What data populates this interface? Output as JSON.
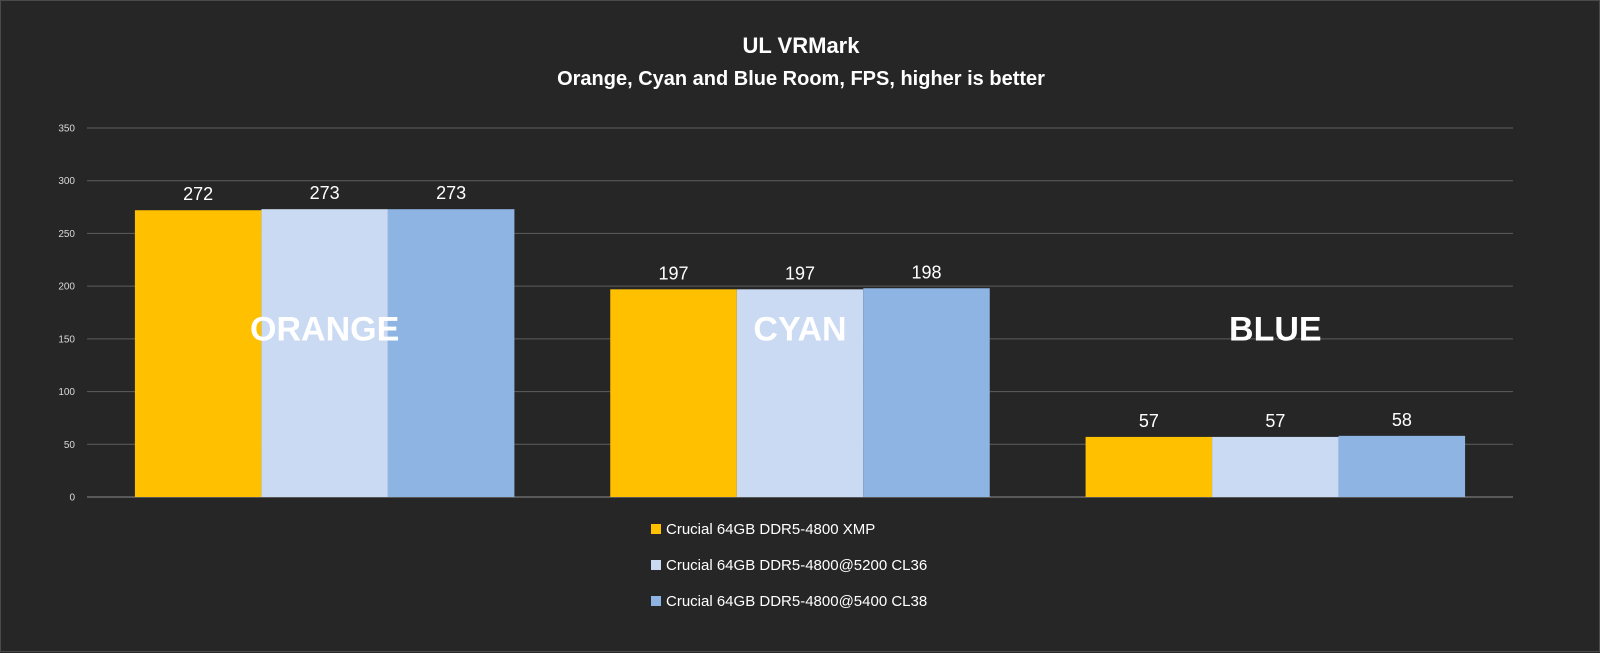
{
  "chart_data": {
    "type": "bar",
    "title": "UL VRMark",
    "subtitle": "Orange, Cyan and Blue Room, FPS, higher is better",
    "categories": [
      "ORANGE",
      "CYAN",
      "BLUE"
    ],
    "series": [
      {
        "name": "Crucial 64GB DDR5-4800 XMP",
        "values": [
          272,
          197,
          57
        ],
        "color": "#FFC000"
      },
      {
        "name": "Crucial 64GB DDR5-4800@5200 CL36",
        "values": [
          273,
          197,
          57
        ],
        "color": "#C9DAF2"
      },
      {
        "name": "Crucial 64GB DDR5-4800@5400 CL38",
        "values": [
          273,
          198,
          58
        ],
        "color": "#8EB4E3"
      }
    ],
    "yticks": [
      0,
      50,
      100,
      150,
      200,
      250,
      300,
      350
    ],
    "ylim": [
      0,
      350
    ],
    "grid": true,
    "legend_position": "bottom"
  }
}
